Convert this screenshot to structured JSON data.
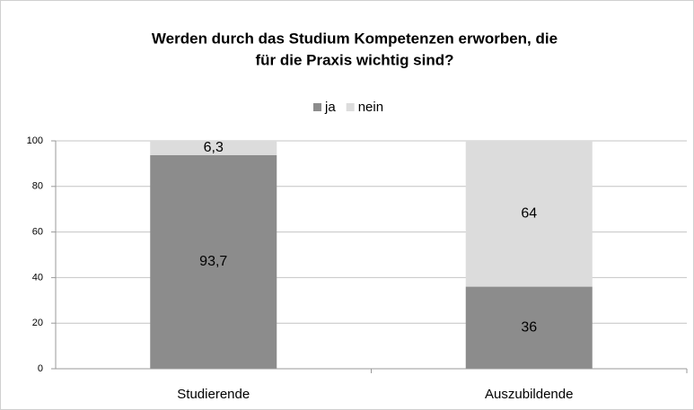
{
  "chart_data": {
    "type": "stacked_bar",
    "title": [
      "Werden durch das Studium Kompetenzen erworben, die",
      "für die Praxis wichtig sind?"
    ],
    "categories": [
      "Studierende",
      "Auszubildende"
    ],
    "series": [
      {
        "name": "ja",
        "color": "#8c8c8c",
        "values": [
          93.7,
          36
        ],
        "value_labels": [
          "93,7",
          "36"
        ]
      },
      {
        "name": "nein",
        "color": "#dcdcdc",
        "values": [
          6.3,
          64
        ],
        "value_labels": [
          "6,3",
          "64"
        ]
      }
    ],
    "ylim": [
      0,
      100
    ],
    "yticks": [
      0,
      20,
      40,
      60,
      80,
      100
    ],
    "grid": true,
    "legend": "top"
  }
}
